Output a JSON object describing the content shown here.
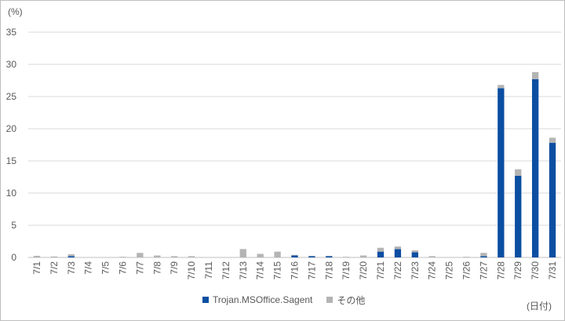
{
  "chart_data": {
    "type": "bar",
    "stacked": true,
    "title": "",
    "ylabel": "(%)",
    "xlabel": "(日付)",
    "ylim": [
      0,
      35
    ],
    "yticks": [
      0,
      5,
      10,
      15,
      20,
      25,
      30,
      35
    ],
    "grid": true,
    "legend_position": "bottom",
    "categories": [
      "7/1",
      "7/2",
      "7/3",
      "7/4",
      "7/5",
      "7/6",
      "7/7",
      "7/8",
      "7/9",
      "7/10",
      "7/11",
      "7/12",
      "7/13",
      "7/14",
      "7/15",
      "7/16",
      "7/17",
      "7/18",
      "7/19",
      "7/20",
      "7/21",
      "7/22",
      "7/23",
      "7/24",
      "7/25",
      "7/26",
      "7/27",
      "7/28",
      "7/29",
      "7/30",
      "7/31"
    ],
    "series": [
      {
        "name": "Trojan.MSOffice.Sagent",
        "color": "#0b4ea2",
        "values": [
          0,
          0,
          0.2,
          0,
          0,
          0,
          0,
          0,
          0,
          0,
          0,
          0,
          0,
          0,
          0,
          0.3,
          0.2,
          0.2,
          0,
          0,
          0.9,
          1.3,
          0.8,
          0,
          0,
          0,
          0.2,
          26.3,
          12.7,
          27.7,
          17.8
        ]
      },
      {
        "name": "その他",
        "color": "#b4b4b4",
        "values": [
          0.25,
          0.15,
          0.3,
          0,
          0,
          0.1,
          0.7,
          0.3,
          0.2,
          0.2,
          0,
          0,
          1.3,
          0.55,
          0.9,
          0.1,
          0.05,
          0.05,
          0.1,
          0.3,
          0.6,
          0.4,
          0.3,
          0.2,
          0,
          0.1,
          0.5,
          0.5,
          1.0,
          1.1,
          0.8
        ]
      }
    ]
  }
}
